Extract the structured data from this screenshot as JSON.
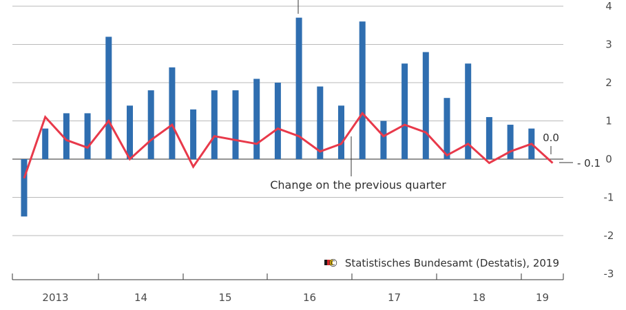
{
  "chart_data": {
    "type": "bar",
    "x_axis": {
      "year_labels": [
        "2013",
        "14",
        "15",
        "16",
        "17",
        "18",
        "19"
      ]
    },
    "y_axis": {
      "position": "right",
      "ylim": [
        -3,
        4
      ],
      "ticks": [
        "4",
        "3",
        "2",
        "1",
        "0",
        "-1",
        "-2",
        "-3"
      ]
    },
    "grid": true,
    "series": [
      {
        "type": "bar",
        "color": "#2f6eb0",
        "values": [
          -1.5,
          0.8,
          1.2,
          1.2,
          3.2,
          1.4,
          1.8,
          2.4,
          1.3,
          1.8,
          1.8,
          2.1,
          2.0,
          3.7,
          1.9,
          1.4,
          3.6,
          1.0,
          2.5,
          2.8,
          1.6,
          2.5,
          1.1,
          0.9,
          0.8,
          0.0
        ]
      },
      {
        "type": "line",
        "color": "#e8394a",
        "values": [
          -0.5,
          1.1,
          0.5,
          0.3,
          1.0,
          0.0,
          0.5,
          0.9,
          -0.2,
          0.6,
          0.5,
          0.4,
          0.8,
          0.6,
          0.2,
          0.4,
          1.2,
          0.6,
          0.9,
          0.7,
          0.1,
          0.4,
          -0.1,
          0.2,
          0.4,
          -0.1
        ]
      }
    ],
    "annotations": {
      "line_label": "Change on the previous quarter",
      "last_bar_value": "0.0",
      "last_line_value": "- 0.1"
    },
    "copyright": "©  Statistisches Bundesamt (Destatis), 2019"
  }
}
